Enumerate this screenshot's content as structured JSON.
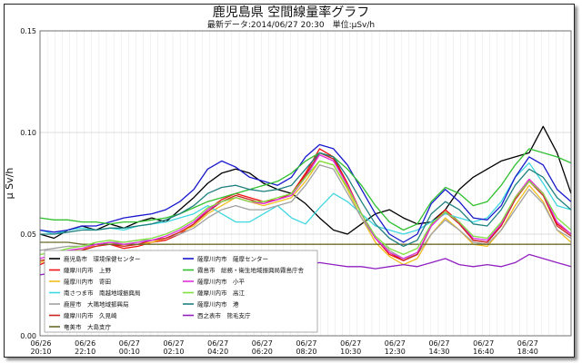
{
  "title": "鹿児島県 空間線量率グラフ",
  "subtitle": "最新データ:2014/06/27 20:30　単位:μSv/h",
  "chart_data": {
    "type": "line",
    "title": "鹿児島県 空間線量率グラフ",
    "subtitle": "最新データ:2014/06/27 20:30　単位:μSv/h",
    "xlabel": "",
    "ylabel": "μ Sv/h",
    "ylim": [
      0,
      0.15
    ],
    "yticks": [
      "0.00",
      "0.05",
      "0.10",
      "0.15"
    ],
    "x_tick_labels": [
      [
        "06/26",
        "20:10"
      ],
      [
        "06/26",
        "22:10"
      ],
      [
        "06/27",
        "00:10"
      ],
      [
        "06/27",
        "02:10"
      ],
      [
        "06/27",
        "04:20"
      ],
      [
        "06/27",
        "06:20"
      ],
      [
        "06/27",
        "08:20"
      ],
      [
        "06/27",
        "10:30"
      ],
      [
        "06/27",
        "12:30"
      ],
      [
        "06/27",
        "14:30"
      ],
      [
        "06/27",
        "16:40"
      ],
      [
        "06/27",
        "18:40"
      ]
    ],
    "grid": true,
    "legend_position": "bottom-left",
    "series": [
      {
        "name": "鹿児島市　環境保健センター",
        "color": "#000000",
        "values": [
          0.05,
          0.048,
          0.052,
          0.054,
          0.052,
          0.055,
          0.053,
          0.056,
          0.058,
          0.056,
          0.062,
          0.068,
          0.075,
          0.08,
          0.082,
          0.08,
          0.075,
          0.072,
          0.07,
          0.065,
          0.058,
          0.052,
          0.05,
          0.055,
          0.06,
          0.062,
          0.058,
          0.055,
          0.056,
          0.062,
          0.072,
          0.078,
          0.082,
          0.086,
          0.088,
          0.09,
          0.103,
          0.09,
          0.07
        ]
      },
      {
        "name": "薩摩川内市　上野",
        "color": "#ee1111",
        "values": [
          0.035,
          0.038,
          0.04,
          0.042,
          0.045,
          0.045,
          0.043,
          0.044,
          0.046,
          0.047,
          0.05,
          0.055,
          0.062,
          0.067,
          0.07,
          0.068,
          0.066,
          0.067,
          0.07,
          0.08,
          0.092,
          0.088,
          0.075,
          0.06,
          0.048,
          0.04,
          0.037,
          0.04,
          0.055,
          0.062,
          0.056,
          0.047,
          0.046,
          0.055,
          0.068,
          0.077,
          0.07,
          0.055,
          0.05
        ]
      },
      {
        "name": "薩摩川内市　寄田",
        "color": "#f0c020",
        "values": [
          0.036,
          0.039,
          0.041,
          0.043,
          0.044,
          0.046,
          0.044,
          0.045,
          0.046,
          0.048,
          0.051,
          0.054,
          0.06,
          0.064,
          0.068,
          0.066,
          0.064,
          0.066,
          0.068,
          0.076,
          0.086,
          0.084,
          0.072,
          0.058,
          0.046,
          0.039,
          0.035,
          0.038,
          0.05,
          0.058,
          0.052,
          0.045,
          0.044,
          0.052,
          0.064,
          0.074,
          0.066,
          0.052,
          0.046
        ]
      },
      {
        "name": "南さつま市　南越地域振興局",
        "color": "#40d8e0",
        "values": [
          0.052,
          0.05,
          0.052,
          0.053,
          0.052,
          0.053,
          0.052,
          0.054,
          0.055,
          0.056,
          0.058,
          0.06,
          0.064,
          0.06,
          0.056,
          0.056,
          0.06,
          0.064,
          0.058,
          0.055,
          0.063,
          0.07,
          0.066,
          0.06,
          0.054,
          0.052,
          0.05,
          0.052,
          0.056,
          0.06,
          0.058,
          0.056,
          0.058,
          0.066,
          0.078,
          0.085,
          0.075,
          0.064,
          0.062
        ]
      },
      {
        "name": "鹿屋市　大隅地域振興局",
        "color": "#a0a0a0",
        "values": [
          0.042,
          0.043,
          0.044,
          0.044,
          0.045,
          0.046,
          0.046,
          0.047,
          0.047,
          0.048,
          0.05,
          0.053,
          0.058,
          0.062,
          0.064,
          0.062,
          0.062,
          0.064,
          0.066,
          0.074,
          0.084,
          0.082,
          0.07,
          0.058,
          0.048,
          0.042,
          0.038,
          0.04,
          0.05,
          0.057,
          0.052,
          0.046,
          0.045,
          0.052,
          0.062,
          0.072,
          0.065,
          0.052,
          0.048
        ]
      },
      {
        "name": "薩摩川内市　久見崎",
        "color": "#cc2222",
        "values": [
          0.037,
          0.038,
          0.041,
          0.042,
          0.044,
          0.045,
          0.044,
          0.045,
          0.047,
          0.048,
          0.051,
          0.055,
          0.061,
          0.066,
          0.069,
          0.067,
          0.065,
          0.067,
          0.07,
          0.079,
          0.09,
          0.087,
          0.074,
          0.06,
          0.048,
          0.041,
          0.037,
          0.04,
          0.054,
          0.061,
          0.055,
          0.047,
          0.046,
          0.054,
          0.067,
          0.076,
          0.069,
          0.054,
          0.049
        ]
      },
      {
        "name": "奄美市　大島支庁",
        "color": "#6b6b2a",
        "values": [
          0.046,
          0.046,
          0.046,
          0.045,
          0.045,
          0.045,
          0.045,
          0.045,
          0.045,
          0.045,
          0.045,
          0.045,
          0.045,
          0.045,
          0.045,
          0.045,
          0.045,
          0.045,
          0.045,
          0.045,
          0.045,
          0.045,
          0.045,
          0.045,
          0.045,
          0.045,
          0.045,
          0.045,
          0.045,
          0.045,
          0.045,
          0.045,
          0.045,
          0.045,
          0.045,
          0.045,
          0.045,
          0.045,
          0.045
        ]
      },
      {
        "name": "薩摩川内市　薩摩センター",
        "color": "#1818cc",
        "values": [
          0.052,
          0.051,
          0.052,
          0.054,
          0.054,
          0.056,
          0.058,
          0.059,
          0.06,
          0.062,
          0.066,
          0.072,
          0.082,
          0.086,
          0.083,
          0.078,
          0.076,
          0.074,
          0.078,
          0.088,
          0.094,
          0.092,
          0.084,
          0.072,
          0.06,
          0.05,
          0.046,
          0.05,
          0.065,
          0.072,
          0.066,
          0.058,
          0.057,
          0.064,
          0.078,
          0.088,
          0.084,
          0.072,
          0.066
        ]
      },
      {
        "name": "霧島市　総務・衛生地域振興局霧島庁舎",
        "color": "#30c030",
        "values": [
          0.058,
          0.057,
          0.057,
          0.056,
          0.056,
          0.055,
          0.056,
          0.056,
          0.057,
          0.058,
          0.06,
          0.063,
          0.066,
          0.068,
          0.07,
          0.072,
          0.074,
          0.076,
          0.08,
          0.086,
          0.09,
          0.088,
          0.082,
          0.074,
          0.064,
          0.056,
          0.052,
          0.055,
          0.066,
          0.073,
          0.07,
          0.064,
          0.066,
          0.074,
          0.084,
          0.092,
          0.09,
          0.088,
          0.085
        ]
      },
      {
        "name": "薩摩川内市　小平",
        "color": "#e030e0",
        "values": [
          0.038,
          0.04,
          0.042,
          0.043,
          0.045,
          0.046,
          0.045,
          0.046,
          0.047,
          0.049,
          0.052,
          0.056,
          0.062,
          0.066,
          0.068,
          0.066,
          0.065,
          0.067,
          0.069,
          0.078,
          0.089,
          0.086,
          0.074,
          0.06,
          0.048,
          0.041,
          0.038,
          0.041,
          0.054,
          0.061,
          0.056,
          0.048,
          0.047,
          0.055,
          0.068,
          0.077,
          0.07,
          0.056,
          0.05
        ]
      },
      {
        "name": "薩摩川内市　高江",
        "color": "#80e040",
        "values": [
          0.04,
          0.041,
          0.043,
          0.044,
          0.046,
          0.047,
          0.046,
          0.047,
          0.048,
          0.05,
          0.053,
          0.057,
          0.063,
          0.066,
          0.068,
          0.066,
          0.066,
          0.068,
          0.07,
          0.078,
          0.086,
          0.084,
          0.073,
          0.06,
          0.049,
          0.043,
          0.04,
          0.043,
          0.055,
          0.061,
          0.056,
          0.049,
          0.048,
          0.056,
          0.068,
          0.076,
          0.07,
          0.058,
          0.052
        ]
      },
      {
        "name": "薩摩川内市　港",
        "color": "#208080",
        "values": [
          0.05,
          0.05,
          0.051,
          0.052,
          0.052,
          0.053,
          0.053,
          0.054,
          0.055,
          0.057,
          0.06,
          0.064,
          0.07,
          0.073,
          0.074,
          0.072,
          0.071,
          0.072,
          0.074,
          0.082,
          0.09,
          0.088,
          0.078,
          0.066,
          0.055,
          0.048,
          0.044,
          0.047,
          0.06,
          0.066,
          0.062,
          0.055,
          0.054,
          0.062,
          0.074,
          0.082,
          0.078,
          0.068,
          0.062
        ]
      },
      {
        "name": "西之表市　熊毛支庁",
        "color": "#9020c0",
        "values": [
          0.03,
          0.031,
          0.03,
          0.032,
          0.031,
          0.03,
          0.031,
          0.032,
          0.031,
          0.03,
          0.032,
          0.033,
          0.034,
          0.035,
          0.034,
          0.034,
          0.036,
          0.035,
          0.034,
          0.035,
          0.036,
          0.035,
          0.034,
          0.034,
          0.033,
          0.034,
          0.035,
          0.034,
          0.036,
          0.038,
          0.035,
          0.034,
          0.035,
          0.034,
          0.036,
          0.04,
          0.038,
          0.036,
          0.034
        ]
      }
    ]
  }
}
